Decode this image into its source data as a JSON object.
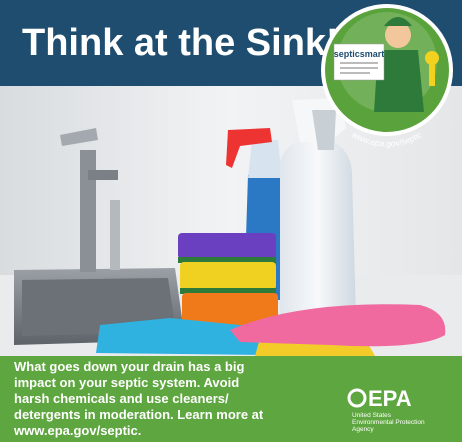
{
  "header": {
    "title": "Think at the Sink!"
  },
  "badge": {
    "brand": "septicsmart",
    "url": "www.epa.gov/septic"
  },
  "footer": {
    "body_lines": [
      "What goes down your drain has a big",
      "impact on your septic system. Avoid",
      "harsh chemicals and use cleaners/",
      "detergents in moderation. Learn more at",
      "www.epa.gov/septic."
    ],
    "logo": {
      "mark": "EPA",
      "lines": [
        "United States",
        "Environmental Protection",
        "Agency"
      ]
    }
  }
}
